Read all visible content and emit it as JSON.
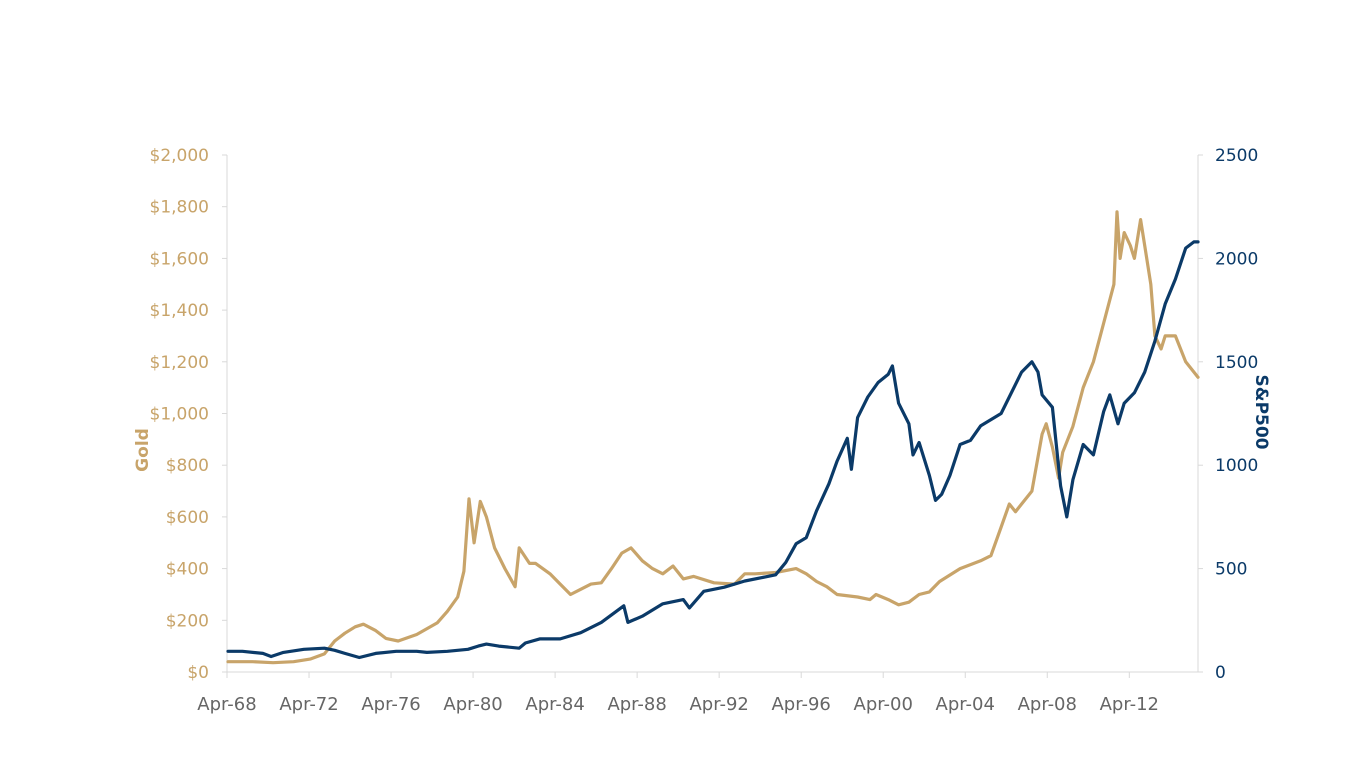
{
  "chart_data": {
    "type": "line",
    "ylabel_left": "Gold",
    "ylabel_right": "S&P500",
    "x_tick_labels": [
      "Apr-68",
      "Apr-72",
      "Apr-76",
      "Apr-80",
      "Apr-84",
      "Apr-88",
      "Apr-92",
      "Apr-96",
      "Apr-00",
      "Apr-04",
      "Apr-08",
      "Apr-12"
    ],
    "x_range": [
      1968.25,
      2015.6
    ],
    "y_left": {
      "range": [
        0,
        2000
      ],
      "tick_labels": [
        "$0",
        "$200",
        "$400",
        "$600",
        "$800",
        "$1,000",
        "$1,200",
        "$1,400",
        "$1,600",
        "$1,800",
        "$2,000"
      ],
      "tick_values": [
        0,
        200,
        400,
        600,
        800,
        1000,
        1200,
        1400,
        1600,
        1800,
        2000
      ]
    },
    "y_right": {
      "range": [
        0,
        2500
      ],
      "tick_labels": [
        "0",
        "500",
        "1000",
        "1500",
        "2000",
        "2500"
      ],
      "tick_values": [
        0,
        500,
        1000,
        1500,
        2000,
        2500
      ]
    },
    "grid": false,
    "legend": "none",
    "colors": {
      "gold": "#c8a46a",
      "sp500": "#0b3a68",
      "axis": "#d9d9d9"
    },
    "series": [
      {
        "axis": "left",
        "x": [
          1968.3,
          1969.5,
          1970.5,
          1971.5,
          1972.3,
          1973.0,
          1973.5,
          1974.0,
          1974.5,
          1974.9,
          1975.5,
          1976.0,
          1976.6,
          1977.5,
          1978.5,
          1979.0,
          1979.5,
          1979.8,
          1980.05,
          1980.3,
          1980.6,
          1980.9,
          1981.3,
          1981.8,
          1982.3,
          1982.5,
          1983.0,
          1983.3,
          1984.0,
          1984.5,
          1985.0,
          1985.5,
          1986.0,
          1986.5,
          1987.0,
          1987.5,
          1987.95,
          1988.5,
          1989.0,
          1989.5,
          1990.0,
          1990.5,
          1991.0,
          1992.0,
          1993.0,
          1993.5,
          1994.0,
          1995.0,
          1996.0,
          1996.5,
          1997.0,
          1997.5,
          1998.0,
          1999.0,
          1999.6,
          1999.9,
          2000.5,
          2001.0,
          2001.5,
          2002.0,
          2002.5,
          2003.0,
          2004.0,
          2005.0,
          2005.5,
          2006.0,
          2006.4,
          2006.7,
          2007.0,
          2007.5,
          2008.0,
          2008.2,
          2008.5,
          2008.8,
          2009.0,
          2009.5,
          2010.0,
          2010.5,
          2011.0,
          2011.5,
          2011.65,
          2011.8,
          2012.0,
          2012.3,
          2012.5,
          2012.8,
          2013.0,
          2013.3,
          2013.5,
          2013.8,
          2014.0,
          2014.5,
          2015.0,
          2015.6
        ],
        "values": [
          40,
          40,
          36,
          40,
          50,
          70,
          120,
          150,
          175,
          185,
          160,
          130,
          120,
          145,
          190,
          235,
          290,
          390,
          670,
          500,
          660,
          600,
          480,
          400,
          330,
          480,
          420,
          420,
          380,
          340,
          300,
          320,
          340,
          345,
          400,
          460,
          480,
          430,
          400,
          380,
          410,
          360,
          370,
          345,
          340,
          380,
          380,
          385,
          400,
          380,
          350,
          330,
          300,
          290,
          280,
          300,
          280,
          260,
          270,
          300,
          310,
          350,
          400,
          430,
          450,
          560,
          650,
          620,
          650,
          700,
          920,
          960,
          870,
          750,
          850,
          950,
          1100,
          1200,
          1350,
          1500,
          1780,
          1600,
          1700,
          1650,
          1600,
          1750,
          1650,
          1500,
          1300,
          1250,
          1300,
          1300,
          1200,
          1140
        ]
      },
      {
        "axis": "right",
        "x": [
          1968.3,
          1969.0,
          1970.0,
          1970.4,
          1971.0,
          1972.0,
          1973.0,
          1973.5,
          1974.0,
          1974.7,
          1975.5,
          1976.5,
          1977.5,
          1978.0,
          1979.0,
          1980.0,
          1980.5,
          1980.9,
          1981.5,
          1982.5,
          1982.8,
          1983.5,
          1984.5,
          1985.5,
          1986.5,
          1987.6,
          1987.8,
          1988.5,
          1989.5,
          1990.5,
          1990.8,
          1991.5,
          1992.5,
          1993.5,
          1994.5,
          1995.0,
          1995.5,
          1996.0,
          1996.5,
          1997.0,
          1997.6,
          1998.0,
          1998.5,
          1998.7,
          1999.0,
          1999.5,
          2000.0,
          2000.5,
          2000.7,
          2001.0,
          2001.5,
          2001.7,
          2002.0,
          2002.5,
          2002.8,
          2003.1,
          2003.5,
          2004.0,
          2004.5,
          2005.0,
          2006.0,
          2007.0,
          2007.5,
          2007.8,
          2008.0,
          2008.5,
          2008.9,
          2009.2,
          2009.5,
          2010.0,
          2010.5,
          2011.0,
          2011.3,
          2011.7,
          2012.0,
          2012.5,
          2013.0,
          2013.5,
          2014.0,
          2014.5,
          2015.0,
          2015.4,
          2015.6
        ],
        "values": [
          100,
          100,
          90,
          75,
          95,
          110,
          115,
          105,
          90,
          70,
          90,
          100,
          100,
          95,
          100,
          110,
          125,
          135,
          125,
          115,
          140,
          160,
          160,
          190,
          240,
          320,
          240,
          270,
          330,
          350,
          310,
          390,
          410,
          440,
          460,
          470,
          530,
          620,
          650,
          780,
          910,
          1020,
          1130,
          980,
          1230,
          1330,
          1400,
          1440,
          1480,
          1300,
          1200,
          1050,
          1110,
          950,
          830,
          860,
          950,
          1100,
          1120,
          1190,
          1250,
          1450,
          1500,
          1450,
          1340,
          1280,
          900,
          750,
          930,
          1100,
          1050,
          1260,
          1340,
          1200,
          1300,
          1350,
          1450,
          1600,
          1780,
          1900,
          2050,
          2080,
          2080
        ]
      }
    ]
  }
}
